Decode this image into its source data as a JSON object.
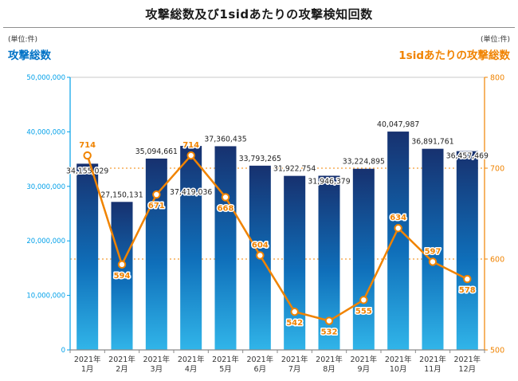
{
  "page": {
    "title": "攻撃総数及び1sidあたりの攻撃検知回数",
    "left_unit_label": "(単位:件)",
    "right_unit_label": "(単位:件)",
    "left_axis_title": "攻撃総数",
    "right_axis_title": "1sidあたりの攻撃総数"
  },
  "colors": {
    "bar_gradient_top": "#17316f",
    "bar_gradient_mid": "#0f6fba",
    "bar_gradient_bottom": "#31b5e9",
    "line": "#f08300",
    "left_axis_text": "#00a0e9",
    "left_axis_title": "#0072c6",
    "right_axis": "#f08300",
    "bar_label_text": "#222222",
    "x_label_text": "#333333",
    "plot_border": "#c9c9c9",
    "bottom_axis": "#8a8a8a"
  },
  "chart_data": {
    "type": "combo_bar_line",
    "title": "攻撃総数及び1sidあたりの攻撃検知回数",
    "year_label": "2021年",
    "categories": [
      "1月",
      "2月",
      "3月",
      "4月",
      "5月",
      "6月",
      "7月",
      "8月",
      "9月",
      "10月",
      "11月",
      "12月"
    ],
    "series": [
      {
        "name": "攻撃総数",
        "type": "bar",
        "axis": "left",
        "values": [
          34155029,
          27150131,
          35094661,
          37419036,
          37360435,
          33793265,
          31922754,
          31946379,
          33224895,
          40047987,
          36891761,
          36457469
        ]
      },
      {
        "name": "1sidあたりの攻撃総数",
        "type": "line",
        "axis": "right",
        "values": [
          714,
          594,
          671,
          714,
          668,
          604,
          542,
          532,
          555,
          634,
          597,
          578
        ]
      }
    ],
    "left_axis": {
      "title": "攻撃総数",
      "unit": "(単位:件)",
      "min": 0,
      "max": 50000000,
      "tick_step": 10000000
    },
    "right_axis": {
      "title": "1sidあたりの攻撃総数",
      "unit": "(単位:件)",
      "min": 500,
      "max": 800,
      "tick_step": 100,
      "dotted_gridlines": [
        600,
        700
      ]
    },
    "legend_position": "top-outside",
    "grid": "right-axis-dotted-only"
  }
}
